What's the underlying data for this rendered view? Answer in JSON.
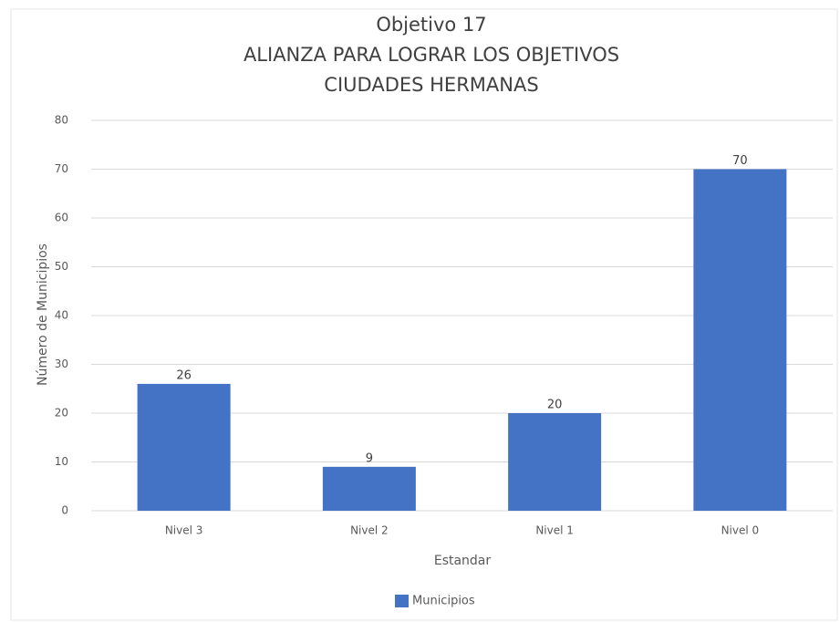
{
  "chart_data": {
    "type": "bar",
    "title": [
      "Objetivo 17",
      "ALIANZA PARA LOGRAR LOS OBJETIVOS",
      "CIUDADES HERMANAS"
    ],
    "x_label": "Estandar",
    "y_label": "Número de Municipios",
    "categories": [
      "Nivel 3",
      "Nivel 2",
      "Nivel 1",
      "Nivel 0"
    ],
    "series": [
      {
        "name": "Municipios",
        "color": "#4472c4",
        "values": [
          26,
          9,
          20,
          70
        ]
      }
    ],
    "ylim": [
      0,
      80
    ],
    "yticks": [
      0,
      10,
      20,
      30,
      40,
      50,
      60,
      70,
      80
    ],
    "grid": true,
    "legend": "bottom"
  }
}
